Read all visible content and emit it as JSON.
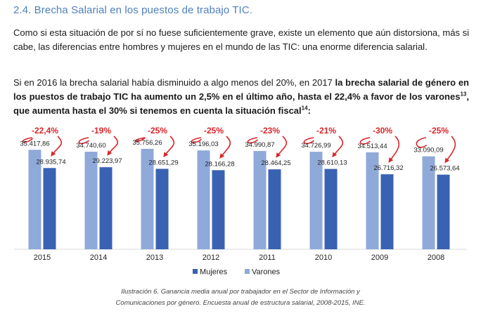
{
  "heading": "2.4. Brecha Salarial en los puestos de trabajo TIC.",
  "para1": "Como si esta situación de por sí no fuese suficientemente grave, existe un elemento que aún distorsiona, más si cabe, las diferencias entre hombres y mujeres en el mundo de las TIC: una enorme diferencia salarial.",
  "para2": {
    "plain": "Si en 2016 la brecha salarial había disminuido a algo menos del 20%, en 2017 ",
    "bold1": "la brecha salarial de género en los puestos de trabajo TIC ha aumento un 2,5% en el último año, hasta el 22,4% a favor de los varones",
    "sup1": "13",
    "bold2": ", que aumenta hasta el 30% si tenemos en cuenta la situación fiscal",
    "sup2": "14",
    "bold3": ":"
  },
  "chart_data": {
    "type": "bar",
    "categories": [
      "2015",
      "2014",
      "2013",
      "2012",
      "2011",
      "2010",
      "2009",
      "2008"
    ],
    "series": [
      {
        "name": "Varones",
        "color": "#8fa9d9",
        "values": [
          35417.86,
          34740.6,
          35756.26,
          35196.03,
          34990.87,
          34726.99,
          34513.44,
          33090.09
        ],
        "labels": [
          "35.417,86",
          "34.740,60",
          "35.756,26",
          "35.196,03",
          "34.990,87",
          "34.726,99",
          "34.513,44",
          "33.090,09"
        ]
      },
      {
        "name": "Mujeres",
        "color": "#3a62b3",
        "values": [
          28935.74,
          29223.97,
          28651.29,
          28166.28,
          28464.25,
          28610.13,
          26716.32,
          26573.64
        ],
        "labels": [
          "28.935,74",
          "29.223,97",
          "28.651,29",
          "28.166,28",
          "28.464,25",
          "28.610,13",
          "26.716,32",
          "26.573,64"
        ]
      }
    ],
    "gap_annotations": [
      "-22,4%",
      "-19%",
      "-25%",
      "-25%",
      "-23%",
      "-21%",
      "-30%",
      "-25%"
    ],
    "annotation_color": "#d9262b",
    "legend": [
      {
        "name": "Mujeres",
        "color": "#3a62b3"
      },
      {
        "name": "Varones",
        "color": "#8fa9d9"
      }
    ],
    "legend_position": "bottom",
    "ylim": [
      0,
      40000
    ],
    "grid": false
  },
  "caption": {
    "line1": "Ilustración 6. Ganancia media anual por trabajador en el Sector de Información y",
    "line2": "Comunicaciones por género. Encuesta anual de estructura salarial, 2008-2015, INE."
  }
}
